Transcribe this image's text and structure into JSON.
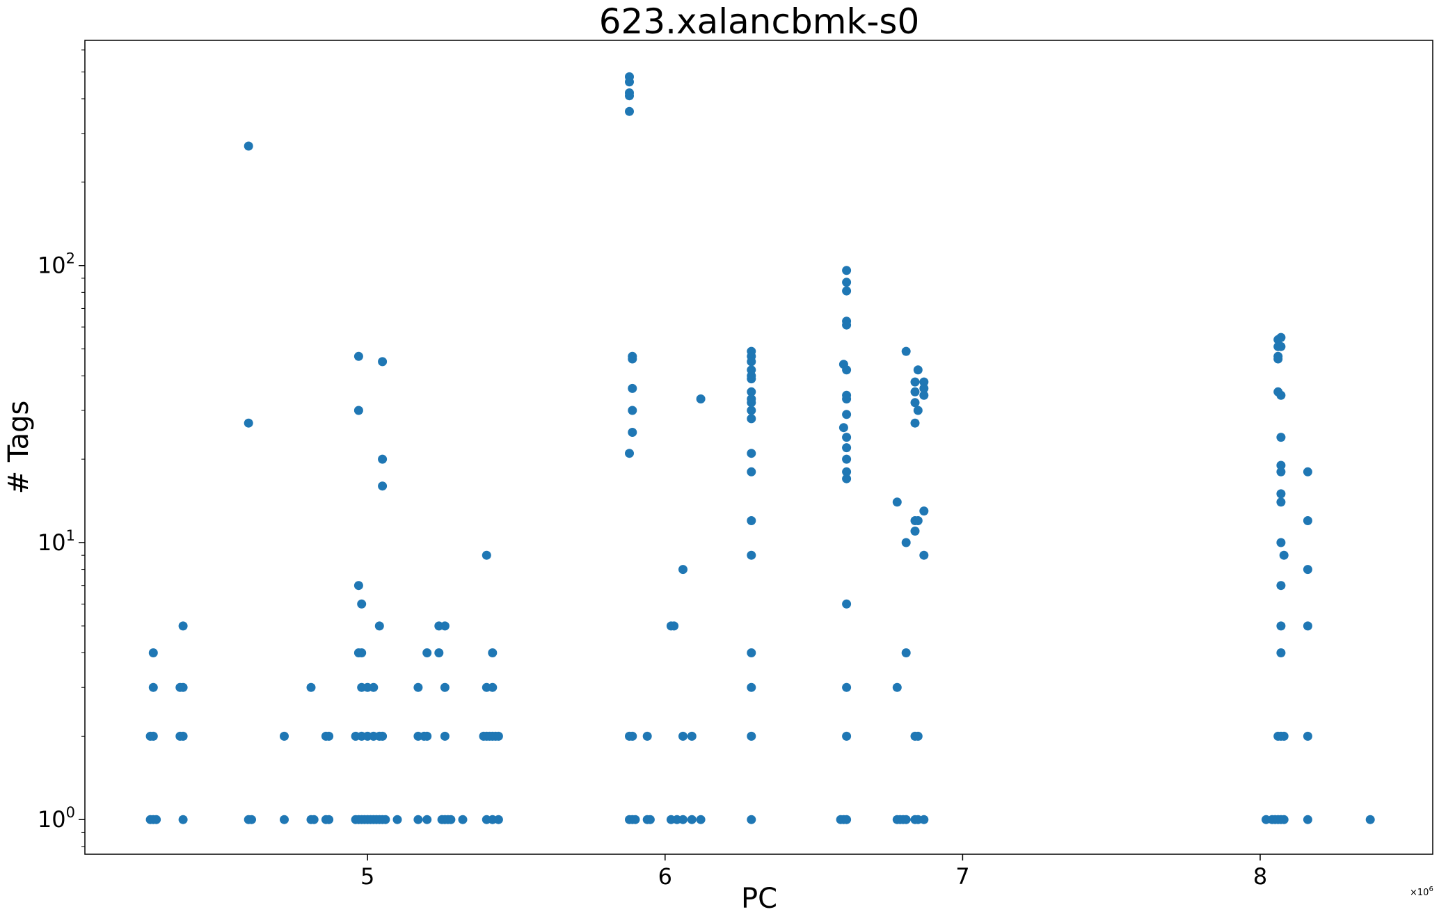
{
  "chart_data": {
    "type": "scatter",
    "title": "623.xalancbmk-s0",
    "xlabel": "PC",
    "ylabel": "# Tags",
    "x_offset_label": "×10",
    "x_offset_exp": "6",
    "y_scale": "log",
    "xlim": [
      4.05,
      8.58
    ],
    "ylim": [
      0.75,
      650
    ],
    "grid": false,
    "marker_color": "#1f77b4",
    "x_ticks": [
      {
        "value": 5,
        "label": "5"
      },
      {
        "value": 6,
        "label": "6"
      },
      {
        "value": 7,
        "label": "7"
      },
      {
        "value": 8,
        "label": "8"
      }
    ],
    "y_ticks": [
      {
        "value": 1,
        "base": "10",
        "exp": "0"
      },
      {
        "value": 10,
        "base": "10",
        "exp": "1"
      },
      {
        "value": 100,
        "base": "10",
        "exp": "2"
      }
    ],
    "points": [
      [
        4.28,
        4
      ],
      [
        4.28,
        3
      ],
      [
        4.28,
        2
      ],
      [
        4.27,
        2
      ],
      [
        4.27,
        1
      ],
      [
        4.28,
        1
      ],
      [
        4.29,
        1
      ],
      [
        4.38,
        5
      ],
      [
        4.38,
        3
      ],
      [
        4.37,
        3
      ],
      [
        4.38,
        2
      ],
      [
        4.37,
        2
      ],
      [
        4.38,
        1
      ],
      [
        4.6,
        270
      ],
      [
        4.6,
        27
      ],
      [
        4.6,
        1
      ],
      [
        4.61,
        1
      ],
      [
        4.72,
        2
      ],
      [
        4.72,
        1
      ],
      [
        4.81,
        3
      ],
      [
        4.81,
        1
      ],
      [
        4.82,
        1
      ],
      [
        4.86,
        2
      ],
      [
        4.87,
        2
      ],
      [
        4.86,
        1
      ],
      [
        4.87,
        1
      ],
      [
        4.97,
        47
      ],
      [
        4.97,
        30
      ],
      [
        4.97,
        7
      ],
      [
        4.98,
        6
      ],
      [
        4.97,
        4
      ],
      [
        4.98,
        4
      ],
      [
        4.98,
        3
      ],
      [
        5.0,
        3
      ],
      [
        5.02,
        3
      ],
      [
        4.96,
        2
      ],
      [
        4.98,
        2
      ],
      [
        5.0,
        2
      ],
      [
        5.02,
        2
      ],
      [
        5.04,
        2
      ],
      [
        5.05,
        2
      ],
      [
        4.96,
        1
      ],
      [
        4.97,
        1
      ],
      [
        4.98,
        1
      ],
      [
        4.99,
        1
      ],
      [
        5.0,
        1
      ],
      [
        5.01,
        1
      ],
      [
        5.02,
        1
      ],
      [
        5.03,
        1
      ],
      [
        5.04,
        1
      ],
      [
        5.05,
        1
      ],
      [
        5.06,
        1
      ],
      [
        5.05,
        45
      ],
      [
        5.05,
        20
      ],
      [
        5.05,
        16
      ],
      [
        5.04,
        5
      ],
      [
        5.1,
        1
      ],
      [
        5.17,
        3
      ],
      [
        5.17,
        2
      ],
      [
        5.17,
        1
      ],
      [
        5.2,
        4
      ],
      [
        5.19,
        2
      ],
      [
        5.2,
        2
      ],
      [
        5.2,
        1
      ],
      [
        5.24,
        5
      ],
      [
        5.26,
        5
      ],
      [
        5.24,
        4
      ],
      [
        5.26,
        3
      ],
      [
        5.26,
        2
      ],
      [
        5.25,
        1
      ],
      [
        5.26,
        1
      ],
      [
        5.27,
        1
      ],
      [
        5.28,
        1
      ],
      [
        5.32,
        1
      ],
      [
        5.4,
        9
      ],
      [
        5.42,
        4
      ],
      [
        5.4,
        3
      ],
      [
        5.42,
        3
      ],
      [
        5.39,
        2
      ],
      [
        5.4,
        2
      ],
      [
        5.41,
        2
      ],
      [
        5.42,
        2
      ],
      [
        5.43,
        2
      ],
      [
        5.44,
        2
      ],
      [
        5.4,
        1
      ],
      [
        5.42,
        1
      ],
      [
        5.44,
        1
      ],
      [
        5.88,
        480
      ],
      [
        5.88,
        460
      ],
      [
        5.88,
        420
      ],
      [
        5.88,
        410
      ],
      [
        5.88,
        360
      ],
      [
        5.89,
        47
      ],
      [
        5.89,
        46
      ],
      [
        5.89,
        36
      ],
      [
        5.89,
        30
      ],
      [
        5.89,
        25
      ],
      [
        5.88,
        21
      ],
      [
        5.88,
        2
      ],
      [
        5.89,
        2
      ],
      [
        5.88,
        1
      ],
      [
        5.89,
        1
      ],
      [
        5.9,
        1
      ],
      [
        5.94,
        2
      ],
      [
        5.94,
        1
      ],
      [
        5.95,
        1
      ],
      [
        6.02,
        5
      ],
      [
        6.03,
        5
      ],
      [
        6.02,
        1
      ],
      [
        6.04,
        1
      ],
      [
        6.06,
        1
      ],
      [
        6.06,
        8
      ],
      [
        6.06,
        2
      ],
      [
        6.09,
        2
      ],
      [
        6.09,
        1
      ],
      [
        6.12,
        33
      ],
      [
        6.12,
        1
      ],
      [
        6.29,
        49
      ],
      [
        6.29,
        47
      ],
      [
        6.29,
        45
      ],
      [
        6.29,
        42
      ],
      [
        6.29,
        40
      ],
      [
        6.29,
        39
      ],
      [
        6.29,
        35
      ],
      [
        6.29,
        33
      ],
      [
        6.29,
        32
      ],
      [
        6.29,
        30
      ],
      [
        6.29,
        28
      ],
      [
        6.29,
        21
      ],
      [
        6.29,
        18
      ],
      [
        6.29,
        12
      ],
      [
        6.29,
        9
      ],
      [
        6.29,
        4
      ],
      [
        6.29,
        3
      ],
      [
        6.29,
        2
      ],
      [
        6.29,
        1
      ],
      [
        6.61,
        96
      ],
      [
        6.61,
        87
      ],
      [
        6.61,
        81
      ],
      [
        6.61,
        63
      ],
      [
        6.61,
        61
      ],
      [
        6.6,
        44
      ],
      [
        6.61,
        42
      ],
      [
        6.61,
        34
      ],
      [
        6.61,
        33
      ],
      [
        6.61,
        29
      ],
      [
        6.6,
        26
      ],
      [
        6.61,
        24
      ],
      [
        6.61,
        22
      ],
      [
        6.61,
        20
      ],
      [
        6.61,
        18
      ],
      [
        6.61,
        17
      ],
      [
        6.61,
        6
      ],
      [
        6.61,
        3
      ],
      [
        6.61,
        2
      ],
      [
        6.59,
        1
      ],
      [
        6.6,
        1
      ],
      [
        6.61,
        1
      ],
      [
        6.78,
        14
      ],
      [
        6.78,
        3
      ],
      [
        6.78,
        1
      ],
      [
        6.79,
        1
      ],
      [
        6.8,
        1
      ],
      [
        6.81,
        49
      ],
      [
        6.81,
        10
      ],
      [
        6.81,
        4
      ],
      [
        6.81,
        1
      ],
      [
        6.85,
        42
      ],
      [
        6.84,
        38
      ],
      [
        6.84,
        35
      ],
      [
        6.84,
        32
      ],
      [
        6.85,
        30
      ],
      [
        6.84,
        27
      ],
      [
        6.84,
        12
      ],
      [
        6.85,
        12
      ],
      [
        6.84,
        11
      ],
      [
        6.84,
        2
      ],
      [
        6.85,
        2
      ],
      [
        6.84,
        1
      ],
      [
        6.85,
        1
      ],
      [
        6.87,
        38
      ],
      [
        6.87,
        36
      ],
      [
        6.87,
        34
      ],
      [
        6.87,
        13
      ],
      [
        6.87,
        9
      ],
      [
        6.87,
        1
      ],
      [
        8.02,
        1
      ],
      [
        8.04,
        1
      ],
      [
        8.05,
        1
      ],
      [
        8.06,
        1
      ],
      [
        8.07,
        1
      ],
      [
        8.08,
        1
      ],
      [
        8.07,
        55
      ],
      [
        8.06,
        54
      ],
      [
        8.07,
        51
      ],
      [
        8.06,
        51
      ],
      [
        8.06,
        47
      ],
      [
        8.06,
        46
      ],
      [
        8.06,
        35
      ],
      [
        8.07,
        34
      ],
      [
        8.07,
        24
      ],
      [
        8.07,
        19
      ],
      [
        8.07,
        18
      ],
      [
        8.07,
        15
      ],
      [
        8.07,
        14
      ],
      [
        8.07,
        10
      ],
      [
        8.08,
        9
      ],
      [
        8.07,
        7
      ],
      [
        8.07,
        5
      ],
      [
        8.07,
        4
      ],
      [
        8.06,
        2
      ],
      [
        8.07,
        2
      ],
      [
        8.08,
        2
      ],
      [
        8.16,
        18
      ],
      [
        8.16,
        12
      ],
      [
        8.16,
        8
      ],
      [
        8.16,
        5
      ],
      [
        8.16,
        2
      ],
      [
        8.16,
        1
      ],
      [
        8.37,
        1
      ]
    ]
  }
}
